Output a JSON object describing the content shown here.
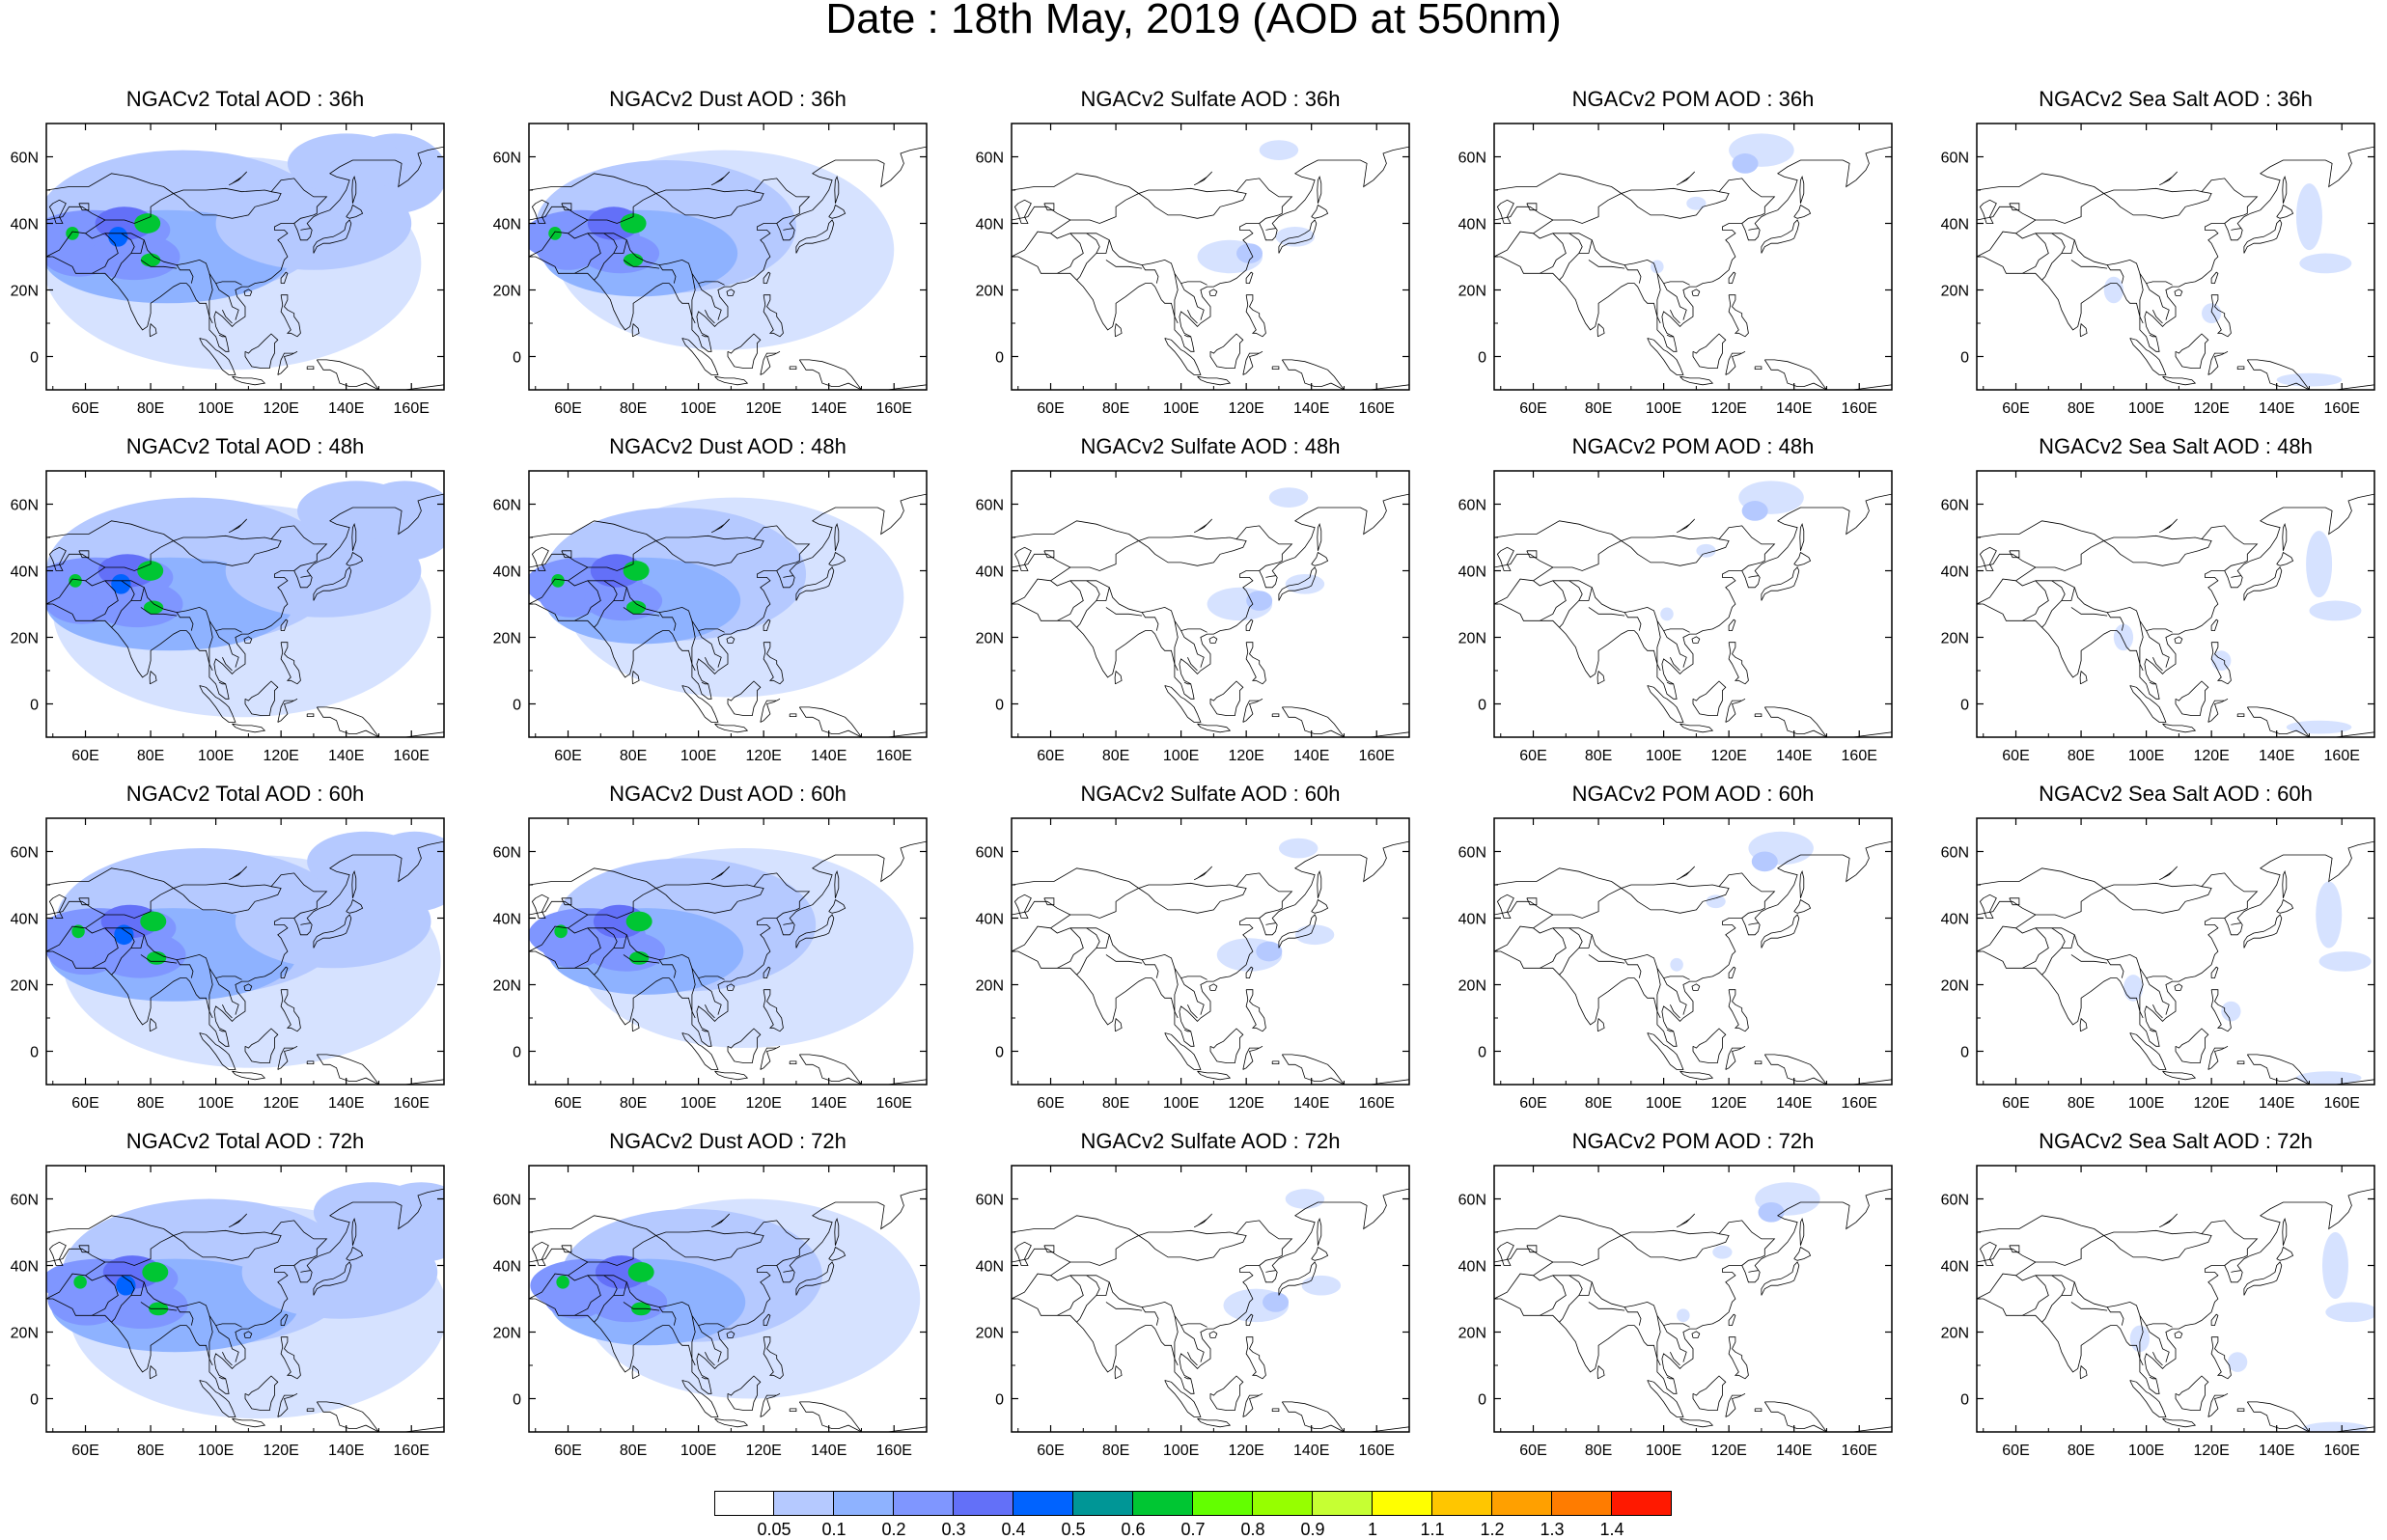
{
  "title": "Date : 18th May, 2019 (AOD at 550nm)",
  "axes": {
    "lon_ticks": [
      "60E",
      "80E",
      "100E",
      "120E",
      "140E",
      "160E"
    ],
    "lat_ticks": [
      "60N",
      "40N",
      "20N",
      "0"
    ],
    "lon_range": [
      48,
      170
    ],
    "lat_range": [
      -10,
      70
    ]
  },
  "panels": [
    {
      "title": "NGACv2 Total AOD : 36h",
      "species": "total",
      "hour": 36
    },
    {
      "title": "NGACv2 Dust AOD : 36h",
      "species": "dust",
      "hour": 36
    },
    {
      "title": "NGACv2 Sulfate AOD : 36h",
      "species": "sulfate",
      "hour": 36
    },
    {
      "title": "NGACv2 POM AOD : 36h",
      "species": "pom",
      "hour": 36
    },
    {
      "title": "NGACv2 Sea Salt AOD : 36h",
      "species": "seasalt",
      "hour": 36
    },
    {
      "title": "NGACv2 Total AOD : 48h",
      "species": "total",
      "hour": 48
    },
    {
      "title": "NGACv2 Dust AOD : 48h",
      "species": "dust",
      "hour": 48
    },
    {
      "title": "NGACv2 Sulfate AOD : 48h",
      "species": "sulfate",
      "hour": 48
    },
    {
      "title": "NGACv2 POM AOD : 48h",
      "species": "pom",
      "hour": 48
    },
    {
      "title": "NGACv2 Sea Salt AOD : 48h",
      "species": "seasalt",
      "hour": 48
    },
    {
      "title": "NGACv2 Total AOD : 60h",
      "species": "total",
      "hour": 60
    },
    {
      "title": "NGACv2 Dust AOD : 60h",
      "species": "dust",
      "hour": 60
    },
    {
      "title": "NGACv2 Sulfate AOD : 60h",
      "species": "sulfate",
      "hour": 60
    },
    {
      "title": "NGACv2 POM AOD : 60h",
      "species": "pom",
      "hour": 60
    },
    {
      "title": "NGACv2 Sea Salt AOD : 60h",
      "species": "seasalt",
      "hour": 60
    },
    {
      "title": "NGACv2 Total AOD : 72h",
      "species": "total",
      "hour": 72
    },
    {
      "title": "NGACv2 Dust AOD : 72h",
      "species": "dust",
      "hour": 72
    },
    {
      "title": "NGACv2 Sulfate AOD : 72h",
      "species": "sulfate",
      "hour": 72
    },
    {
      "title": "NGACv2 POM AOD : 72h",
      "species": "pom",
      "hour": 72
    },
    {
      "title": "NGACv2 Sea Salt  AOD : 72h",
      "species": "seasalt",
      "hour": 72
    }
  ],
  "colorbar": {
    "labels": [
      "0.05",
      "0.1",
      "0.2",
      "0.3",
      "0.4",
      "0.5",
      "0.6",
      "0.7",
      "0.8",
      "0.9",
      "1",
      "1.1",
      "1.2",
      "1.3",
      "1.4"
    ],
    "colors": [
      "#ffffff",
      "#d6e2ff",
      "#b5c9ff",
      "#8eb2ff",
      "#7f96ff",
      "#6370f8",
      "#0063ff",
      "#009696",
      "#00c633",
      "#63ff00",
      "#96ff00",
      "#c6ff33",
      "#ffff00",
      "#ffc600",
      "#ffa000",
      "#ff7c00",
      "#ff1900"
    ]
  }
}
